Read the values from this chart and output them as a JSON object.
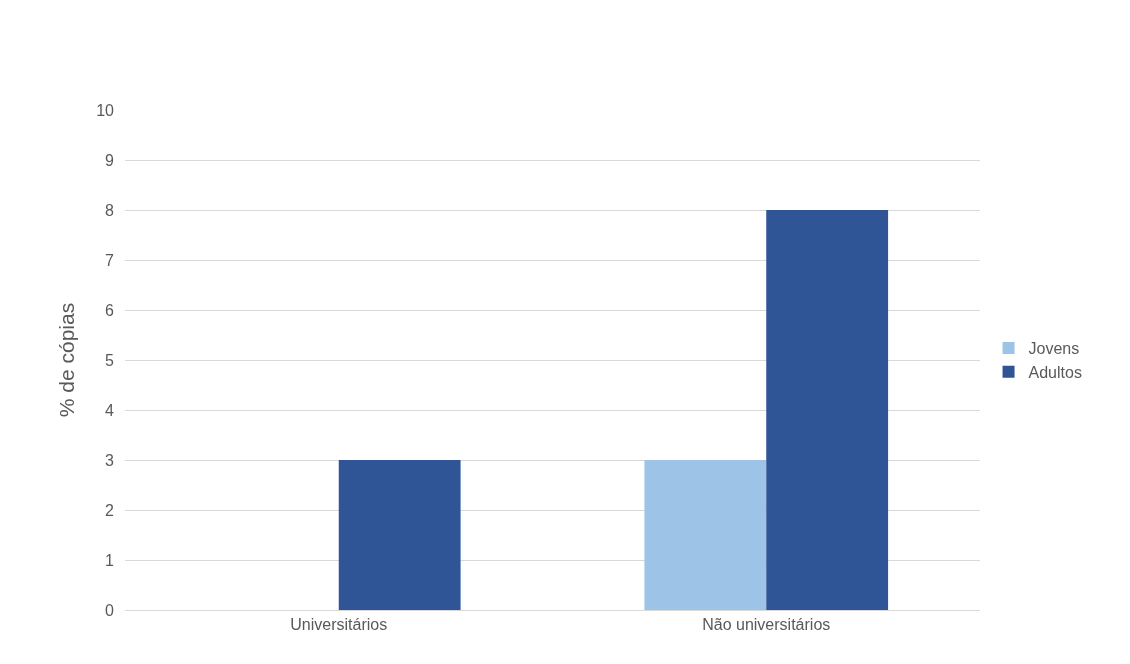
{
  "chart_data": {
    "type": "bar",
    "ylabel": "% de cópias",
    "categories": [
      "Universitários",
      "Não universitários"
    ],
    "series": [
      {
        "name": "Jovens",
        "color": "#9dc3e6",
        "values": [
          0,
          3
        ]
      },
      {
        "name": "Adultos",
        "color": "#2f5597",
        "values": [
          3,
          8
        ]
      }
    ],
    "ylim": [
      0,
      10
    ],
    "yticks": [
      0,
      1,
      2,
      3,
      4,
      5,
      6,
      7,
      8,
      9,
      10
    ],
    "grid": "y",
    "legend": "right"
  }
}
